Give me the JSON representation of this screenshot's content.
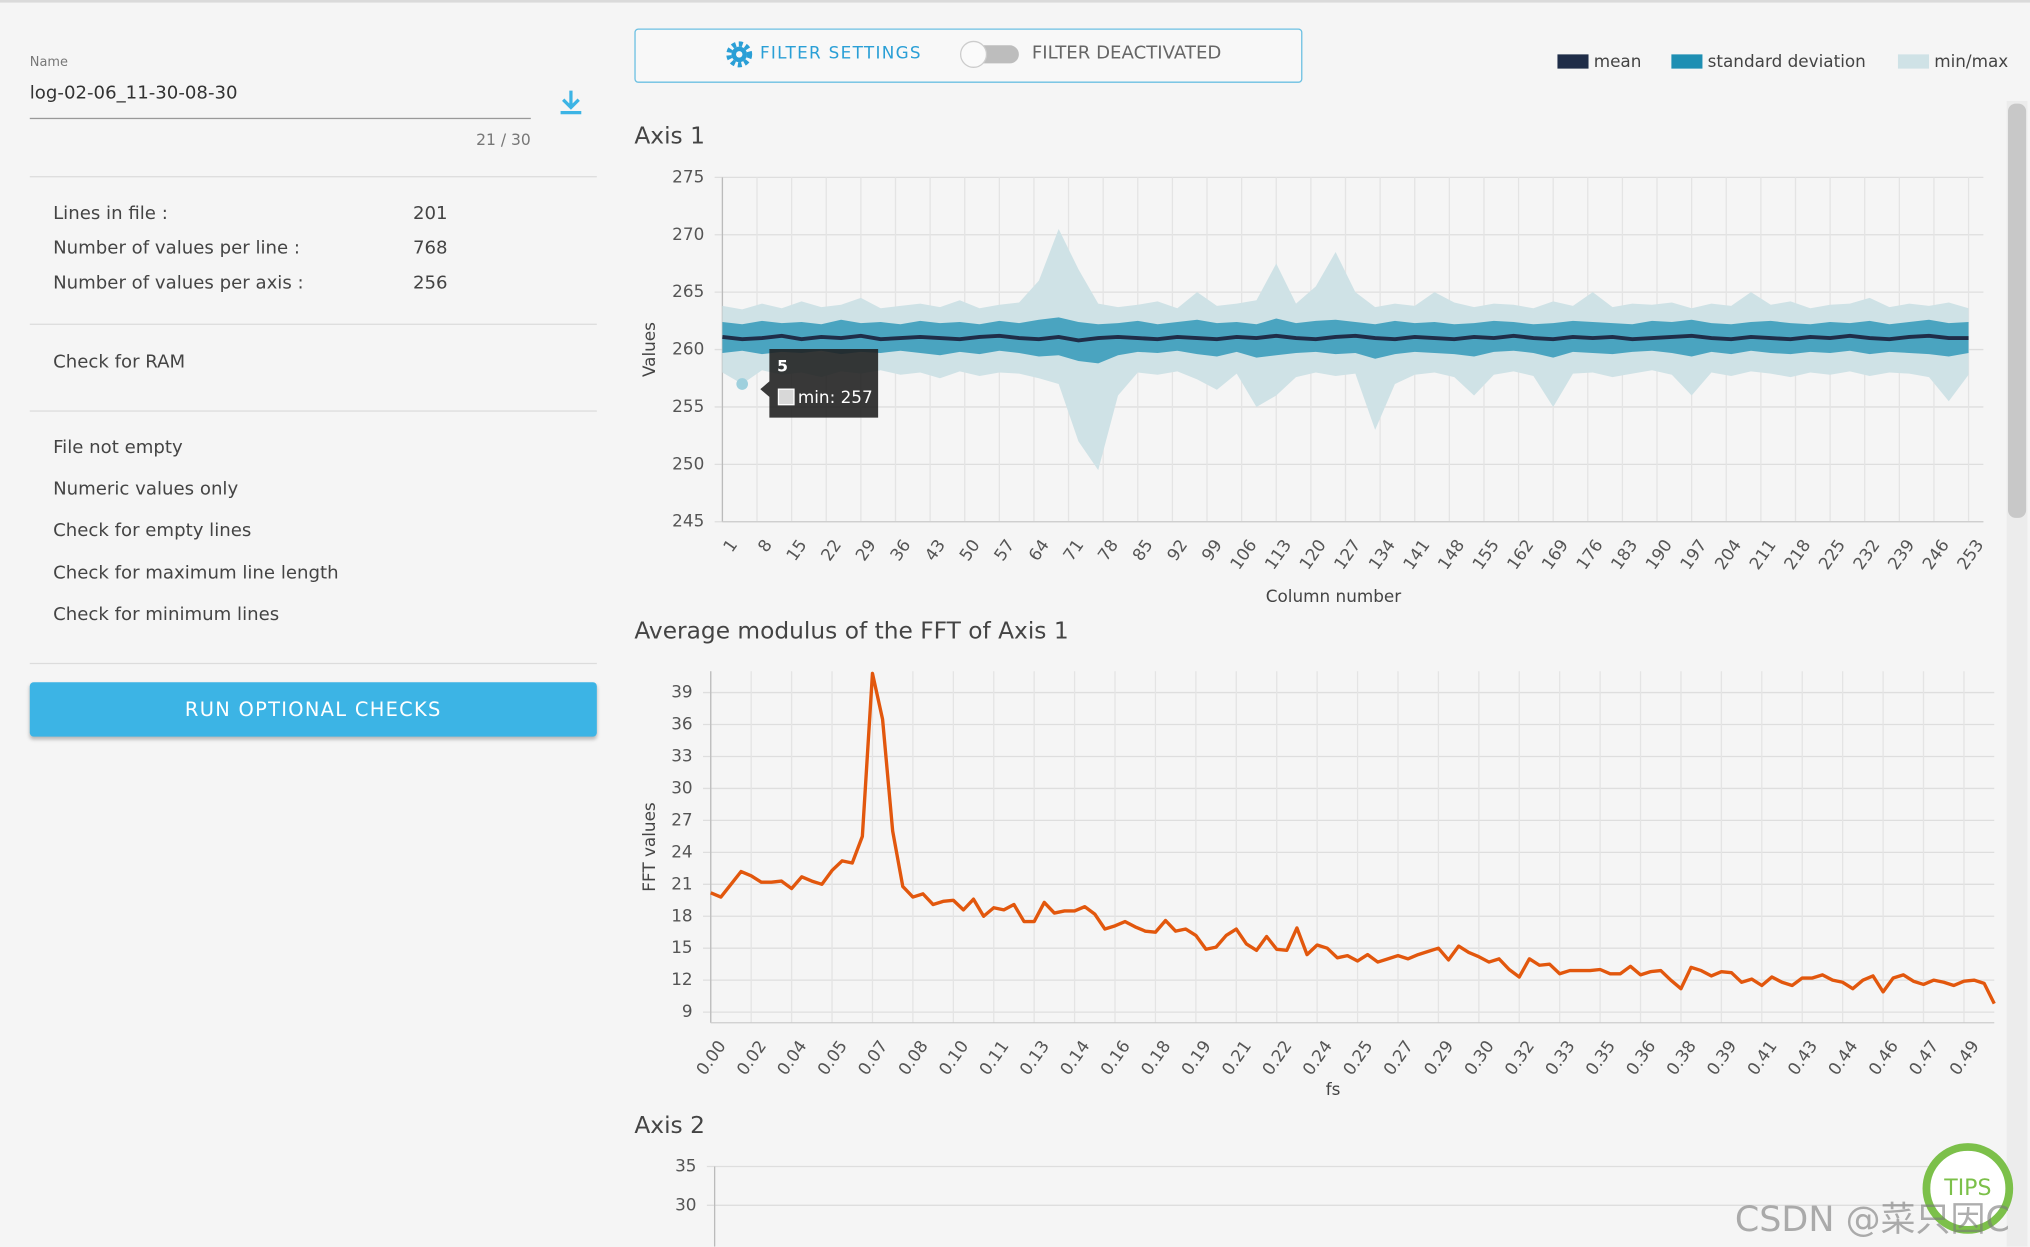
{
  "sidebar": {
    "name_label": "Name",
    "name_value": "log-02-06_11-30-08-30",
    "counter": "21 / 30",
    "info": [
      {
        "label": "Lines in file :",
        "value": 201
      },
      {
        "label": "Number of values per line :",
        "value": 768
      },
      {
        "label": "Number of values per axis :",
        "value": 256
      }
    ],
    "ram_check": "Check for RAM",
    "checks": [
      "File not empty",
      "Numeric values only",
      "Check for empty lines",
      "Check for maximum line length",
      "Check for minimum lines"
    ],
    "button": "RUN OPTIONAL CHECKS"
  },
  "toolbar": {
    "filter_settings": "FILTER SETTINGS",
    "filter_status": "FILTER DEACTIVATED"
  },
  "tips": "TIPS",
  "watermark": "CSDN @菜只因C",
  "chart_data": [
    {
      "type": "band",
      "title": "Axis 1",
      "x_label": "Column number",
      "y_label": "Values",
      "x": [
        1,
        5,
        9,
        13,
        17,
        21,
        25,
        29,
        33,
        37,
        41,
        45,
        49,
        53,
        57,
        61,
        65,
        69,
        73,
        77,
        81,
        85,
        89,
        93,
        97,
        101,
        105,
        109,
        113,
        117,
        121,
        125,
        129,
        133,
        137,
        141,
        145,
        149,
        153,
        157,
        161,
        165,
        169,
        173,
        177,
        181,
        185,
        189,
        193,
        197,
        201,
        205,
        209,
        213,
        217,
        221,
        225,
        229,
        233,
        237,
        241,
        245,
        249,
        253
      ],
      "series": [
        {
          "name": "mean",
          "color": "#1f2d48",
          "values": [
            261.1,
            260.9,
            261,
            261.2,
            260.9,
            261.1,
            261,
            261.2,
            260.9,
            261,
            261.1,
            261,
            260.9,
            261.1,
            261.2,
            261,
            260.9,
            261.1,
            260.8,
            261,
            261.1,
            261,
            260.9,
            261.1,
            261,
            260.9,
            261.1,
            261,
            261.2,
            261,
            260.9,
            261.1,
            261.2,
            261,
            260.9,
            261.1,
            261,
            260.9,
            261.1,
            261,
            261.2,
            261,
            260.9,
            261.1,
            261,
            261.1,
            260.9,
            261,
            261.1,
            261.2,
            261,
            260.9,
            261.1,
            261,
            260.9,
            261.1,
            261,
            261.2,
            261,
            260.9,
            261.1,
            261.2,
            261,
            261
          ]
        },
        {
          "name": "standard deviation",
          "color": "#1e8fb3",
          "low": [
            259.7,
            259.9,
            259.6,
            259.8,
            259.7,
            259.9,
            259.6,
            259.8,
            259.7,
            259.9,
            259.7,
            259.5,
            259.8,
            259.6,
            259.9,
            259.7,
            259.4,
            259.5,
            259,
            258.8,
            259.5,
            259.8,
            259.7,
            259.9,
            259.6,
            259.4,
            259.8,
            259.3,
            259.5,
            259.7,
            259.8,
            259.6,
            259.7,
            259.2,
            259.6,
            259.8,
            259.7,
            259.6,
            259.4,
            259.8,
            259.9,
            259.7,
            259.3,
            259.8,
            259.7,
            259.6,
            259.8,
            259.9,
            259.7,
            259.4,
            259.8,
            259.6,
            259.9,
            259.7,
            259.6,
            259.8,
            259.7,
            259.9,
            259.6,
            259.8,
            259.7,
            259.6,
            259.4,
            259.7
          ],
          "high": [
            262.4,
            262.2,
            262.5,
            262.3,
            262.4,
            262.2,
            262.6,
            262.3,
            262.4,
            262.2,
            262.5,
            262.3,
            262.4,
            262.2,
            262.5,
            262.3,
            262.6,
            262.8,
            262.4,
            262.2,
            262.3,
            262.5,
            262.2,
            262.4,
            262.6,
            262.3,
            262.4,
            262.2,
            262.7,
            262.3,
            262.5,
            262.6,
            262.4,
            262.2,
            262.5,
            262.3,
            262.4,
            262.2,
            262.3,
            262.5,
            262.4,
            262.2,
            262.3,
            262.5,
            262.4,
            262.3,
            262.2,
            262.5,
            262.4,
            262.6,
            262.3,
            262.2,
            262.4,
            262.5,
            262.3,
            262.2,
            262.4,
            262.3,
            262.5,
            262.2,
            262.4,
            262.6,
            262.3,
            262.4
          ]
        },
        {
          "name": "min/max",
          "color": "#cfe2e6",
          "low": [
            258,
            257,
            258.2,
            257.8,
            258,
            257.6,
            258.1,
            257.9,
            258.2,
            257.8,
            258,
            257.5,
            258.1,
            257.7,
            258,
            257.9,
            257.5,
            257,
            252,
            249.5,
            256,
            258,
            257.8,
            258.1,
            257.4,
            256.5,
            257.9,
            255,
            256,
            257.6,
            258,
            257.7,
            257.9,
            253,
            257,
            257.8,
            258,
            257.6,
            256,
            257.8,
            258.1,
            257.7,
            255,
            257.9,
            258,
            257.6,
            257.9,
            258.2,
            257.8,
            256,
            258,
            257.7,
            258.1,
            257.9,
            257.6,
            258,
            257.8,
            258.1,
            257.7,
            258,
            257.9,
            257.6,
            255.5,
            257.8
          ],
          "high": [
            263.8,
            263.5,
            264,
            263.6,
            264.2,
            263.7,
            263.9,
            264.5,
            263.6,
            263.8,
            264,
            263.7,
            264.3,
            263.6,
            263.9,
            264.1,
            266,
            270.5,
            267,
            264,
            263.7,
            263.9,
            264.2,
            263.6,
            265,
            263.8,
            264,
            264.3,
            267.5,
            264,
            265.5,
            268.5,
            265,
            263.7,
            264,
            263.8,
            265,
            264.1,
            263.7,
            264,
            263.9,
            263.6,
            264.2,
            263.8,
            265,
            263.7,
            264,
            263.9,
            264.1,
            263.6,
            264,
            263.8,
            265,
            263.9,
            264.2,
            263.6,
            263.9,
            264,
            264.5,
            263.7,
            264,
            263.8,
            264.1,
            263.6
          ]
        }
      ],
      "xlim": [
        1,
        256
      ],
      "ylim": [
        245,
        275
      ],
      "xticks": [
        1,
        8,
        15,
        22,
        29,
        36,
        43,
        50,
        57,
        64,
        71,
        78,
        85,
        92,
        99,
        106,
        113,
        120,
        127,
        134,
        141,
        148,
        155,
        162,
        169,
        176,
        183,
        190,
        197,
        204,
        211,
        218,
        225,
        232,
        239,
        246,
        253
      ],
      "yticks": [
        245,
        250,
        255,
        260,
        265,
        270,
        275
      ],
      "grid": true,
      "legend": "top-right",
      "tooltip": {
        "title": "5",
        "text": "min: 257"
      }
    },
    {
      "type": "line",
      "title": "Average modulus of the FFT of Axis 1",
      "x_label": "fs",
      "y_label": "FFT values",
      "color": "#e2570d",
      "categories": [
        "0.00",
        null,
        null,
        null,
        "0.02",
        null,
        null,
        null,
        "0.04",
        null,
        null,
        null,
        "0.05",
        null,
        null,
        null,
        "0.07",
        null,
        null,
        null,
        "0.08",
        null,
        null,
        null,
        "0.10",
        null,
        null,
        null,
        "0.11",
        null,
        null,
        null,
        "0.13",
        null,
        null,
        null,
        "0.14",
        null,
        null,
        null,
        "0.16",
        null,
        null,
        null,
        "0.18",
        null,
        null,
        null,
        "0.19",
        null,
        null,
        null,
        "0.21",
        null,
        null,
        null,
        "0.22",
        null,
        null,
        null,
        "0.24",
        null,
        null,
        null,
        "0.25",
        null,
        null,
        null,
        "0.27",
        null,
        null,
        null,
        "0.29",
        null,
        null,
        null,
        "0.30",
        null,
        null,
        null,
        "0.32",
        null,
        null,
        null,
        "0.33",
        null,
        null,
        null,
        "0.35",
        null,
        null,
        null,
        "0.36",
        null,
        null,
        null,
        "0.38",
        null,
        null,
        null,
        "0.39",
        null,
        null,
        null,
        "0.41",
        null,
        null,
        null,
        "0.43",
        null,
        null,
        null,
        "0.44",
        null,
        null,
        null,
        "0.46",
        null,
        null,
        null,
        "0.47",
        null,
        null,
        null,
        "0.49",
        null,
        null,
        null
      ],
      "values": [
        20.2,
        19.8,
        21,
        22.2,
        21.8,
        21.2,
        21.2,
        21.3,
        20.6,
        21.7,
        21.3,
        21,
        22.3,
        23.2,
        23,
        25.5,
        40.8,
        36.5,
        26,
        20.8,
        19.8,
        20.1,
        19.1,
        19.4,
        19.5,
        18.6,
        19.6,
        18,
        18.8,
        18.6,
        19.1,
        17.5,
        17.5,
        19.3,
        18.3,
        18.5,
        18.5,
        18.9,
        18.2,
        16.8,
        17.1,
        17.5,
        17,
        16.6,
        16.5,
        17.6,
        16.6,
        16.8,
        16.2,
        14.9,
        15.1,
        16.2,
        16.8,
        15.4,
        14.8,
        16.1,
        14.9,
        14.8,
        16.9,
        14.4,
        15.3,
        15,
        14.1,
        14.3,
        13.8,
        14.4,
        13.7,
        14,
        14.3,
        14,
        14.4,
        14.7,
        15,
        13.9,
        15.2,
        14.6,
        14.2,
        13.7,
        14,
        13,
        12.3,
        14,
        13.4,
        13.5,
        12.6,
        12.9,
        12.9,
        12.9,
        13,
        12.6,
        12.6,
        13.3,
        12.5,
        12.8,
        12.9,
        12,
        11.2,
        13.2,
        12.9,
        12.4,
        12.8,
        12.7,
        11.8,
        12.1,
        11.5,
        12.3,
        11.8,
        11.5,
        12.2,
        12.2,
        12.5,
        12,
        11.8,
        11.2,
        12,
        12.4,
        10.9,
        12.2,
        12.5,
        11.9,
        11.6,
        12,
        11.8,
        11.5,
        11.9,
        12,
        11.7,
        9.8
      ],
      "ylim": [
        8,
        41
      ],
      "yticks": [
        9,
        12,
        15,
        18,
        21,
        24,
        27,
        30,
        33,
        36,
        39
      ],
      "grid": true
    },
    {
      "type": "band",
      "title": "Axis 2",
      "ylim": [
        30,
        35
      ],
      "yticks": [
        30,
        35
      ],
      "grid": true
    }
  ]
}
